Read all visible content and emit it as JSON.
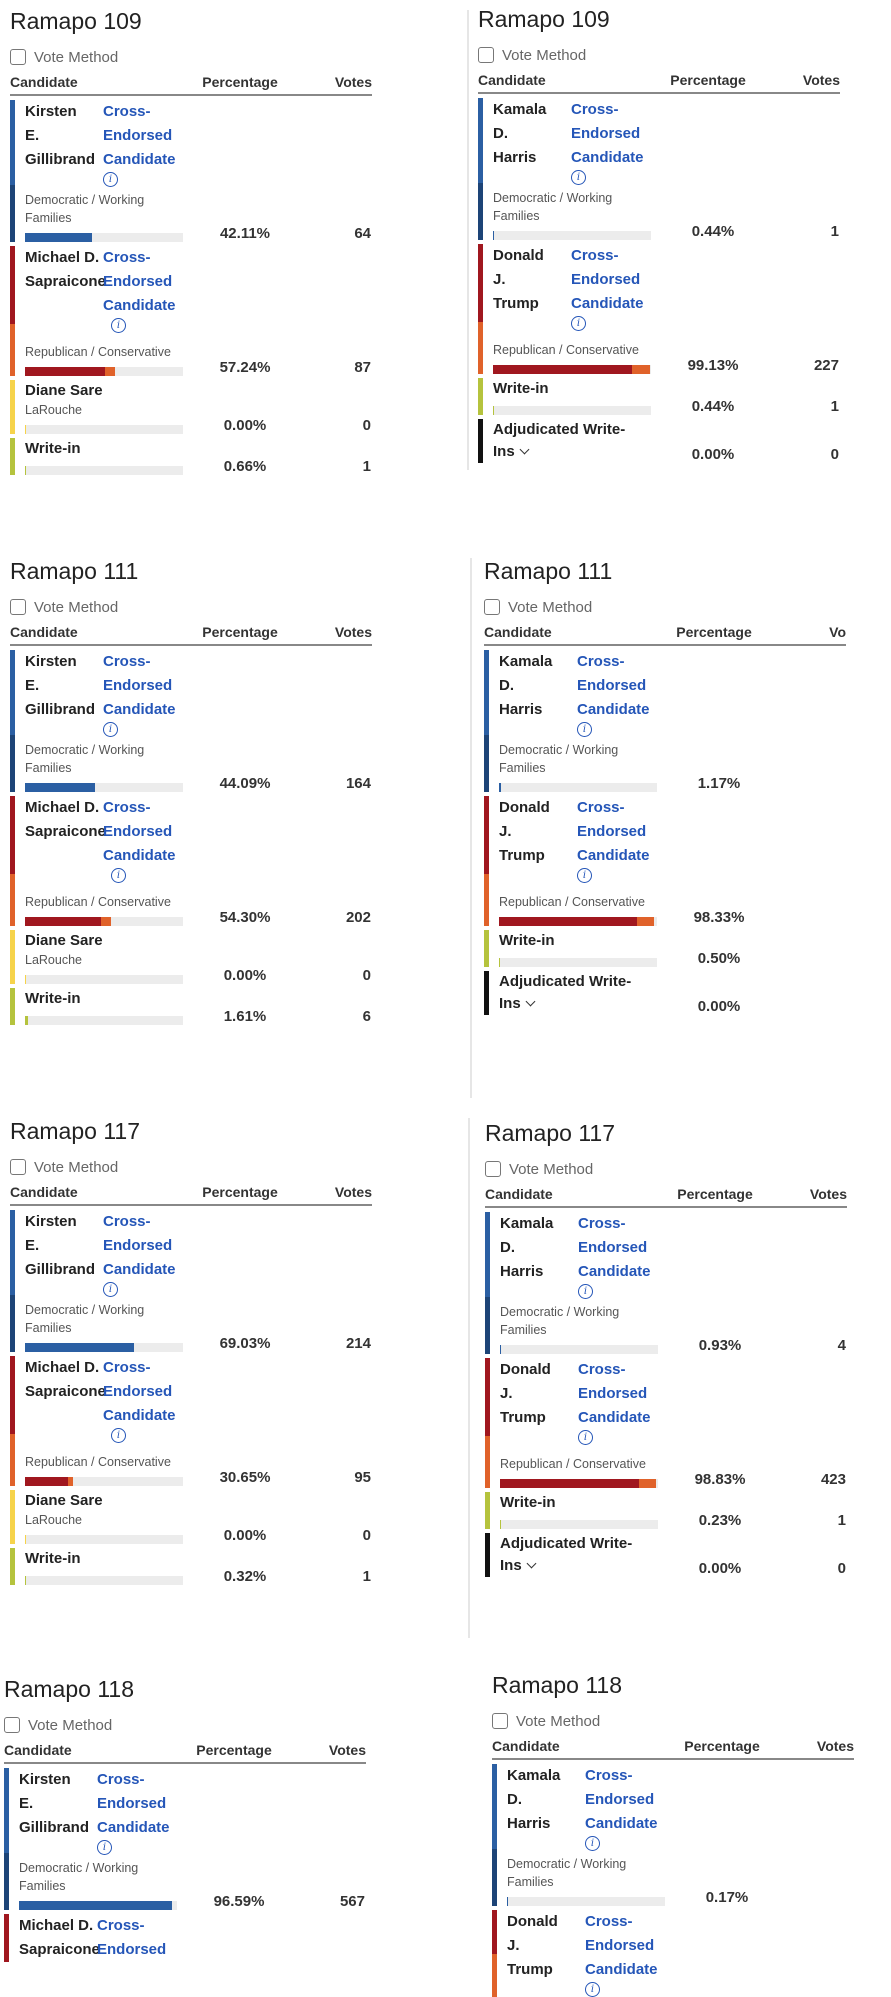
{
  "colors": {
    "dem": "#2b5fa3",
    "dem_dark": "#1d4477",
    "rep": "#a0171f",
    "con": "#e0622a",
    "larouche": "#f6d34a",
    "writein": "#b5c33d",
    "adjudicated": "#111111",
    "link": "#2556b8"
  },
  "labels": {
    "vote_method": "Vote Method",
    "col_candidate": "Candidate",
    "col_percentage": "Percentage",
    "col_votes": "Votes",
    "cross_1": "Cross-",
    "cross_2": "Endorsed",
    "cross_3": "Candidate",
    "info": "i",
    "dem_party_1": "Democratic / Working",
    "dem_party_2": "Families",
    "rep_party": "Republican / Conservative",
    "larouche_party": "LaRouche",
    "adjudicated_1": "Adjudicated Write-",
    "adjudicated_2": "Ins"
  },
  "candidates": {
    "gillibrand": [
      "Kirsten",
      "E.",
      "Gillibrand"
    ],
    "sapraicone": [
      "Michael D.",
      "Sapraicone"
    ],
    "sare": "Diane Sare",
    "writein": "Write-in",
    "harris": [
      "Kamala",
      "D.",
      "Harris"
    ],
    "trump": [
      "Donald",
      "J.",
      "Trump"
    ]
  },
  "panels": {
    "s109": {
      "title": "Ramapo 109",
      "gillibrand": {
        "pct": "42.11%",
        "votes": "64",
        "frac": 0.4211
      },
      "sapraicone": {
        "pct": "57.24%",
        "votes": "87",
        "frac": 0.5724
      },
      "sare": {
        "pct": "0.00%",
        "votes": "0",
        "frac": 0.0
      },
      "writein": {
        "pct": "0.66%",
        "votes": "1",
        "frac": 0.0066
      }
    },
    "p109": {
      "title": "Ramapo 109",
      "harris": {
        "pct": "0.44%",
        "votes": "1",
        "frac": 0.0044
      },
      "trump": {
        "pct": "99.13%",
        "votes": "227",
        "frac": 0.9913
      },
      "writein": {
        "pct": "0.44%",
        "votes": "1",
        "frac": 0.0044
      },
      "adjudicated": {
        "pct": "0.00%",
        "votes": "0",
        "frac": 0.0
      }
    },
    "s111": {
      "title": "Ramapo 111",
      "gillibrand": {
        "pct": "44.09%",
        "votes": "164",
        "frac": 0.4409
      },
      "sapraicone": {
        "pct": "54.30%",
        "votes": "202",
        "frac": 0.543
      },
      "sare": {
        "pct": "0.00%",
        "votes": "0",
        "frac": 0.0
      },
      "writein": {
        "pct": "1.61%",
        "votes": "6",
        "frac": 0.0161
      }
    },
    "p111": {
      "title": "Ramapo 111",
      "col_votes_visible": "Vo",
      "harris": {
        "pct": "1.17%",
        "votes": "",
        "frac": 0.0117
      },
      "trump": {
        "pct": "98.33%",
        "votes": "",
        "frac": 0.9833
      },
      "writein": {
        "pct": "0.50%",
        "votes": "",
        "frac": 0.005
      },
      "adjudicated": {
        "pct": "0.00%",
        "votes": "",
        "frac": 0.0
      }
    },
    "s117": {
      "title": "Ramapo 117",
      "gillibrand": {
        "pct": "69.03%",
        "votes": "214",
        "frac": 0.6903
      },
      "sapraicone": {
        "pct": "30.65%",
        "votes": "95",
        "frac": 0.3065
      },
      "sare": {
        "pct": "0.00%",
        "votes": "0",
        "frac": 0.0
      },
      "writein": {
        "pct": "0.32%",
        "votes": "1",
        "frac": 0.0032
      }
    },
    "p117": {
      "title": "Ramapo 117",
      "harris": {
        "pct": "0.93%",
        "votes": "4",
        "frac": 0.0093
      },
      "trump": {
        "pct": "98.83%",
        "votes": "423",
        "frac": 0.9883
      },
      "writein": {
        "pct": "0.23%",
        "votes": "1",
        "frac": 0.0023
      },
      "adjudicated": {
        "pct": "0.00%",
        "votes": "0",
        "frac": 0.0
      }
    },
    "s118": {
      "title": "Ramapo 118",
      "gillibrand": {
        "pct": "96.59%",
        "votes": "567",
        "frac": 0.9659
      }
    },
    "p118": {
      "title": "Ramapo 118",
      "harris": {
        "pct": "0.17%",
        "votes": "",
        "frac": 0.0017
      }
    }
  }
}
